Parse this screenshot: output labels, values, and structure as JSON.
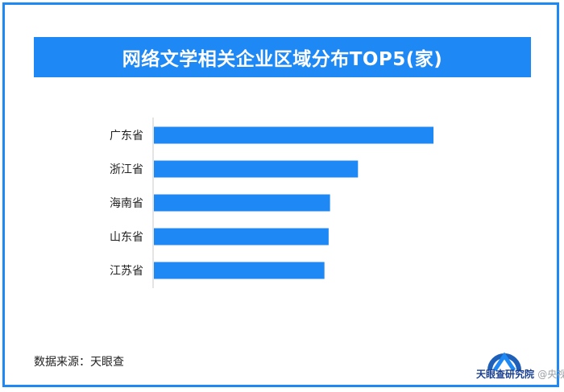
{
  "title": "网络文学相关企业区域分布TOP5(家)",
  "source": "数据来源：天眼查",
  "logo": {
    "text": "天眼查研究院",
    "watermark": "@央视财经"
  },
  "colors": {
    "accent": "#1e88f5",
    "bar": "#1e88f5",
    "axis": "#c8c8c8"
  },
  "chart_data": {
    "type": "bar",
    "orientation": "horizontal",
    "categories": [
      "广东省",
      "浙江省",
      "海南省",
      "山东省",
      "江苏省"
    ],
    "values": [
      100,
      73,
      63,
      62.5,
      61
    ],
    "title": "网络文学相关企业区域分布TOP5(家)",
    "xlabel": "",
    "ylabel": "",
    "xlim": [
      0,
      100
    ],
    "grid": false,
    "legend": "none"
  }
}
